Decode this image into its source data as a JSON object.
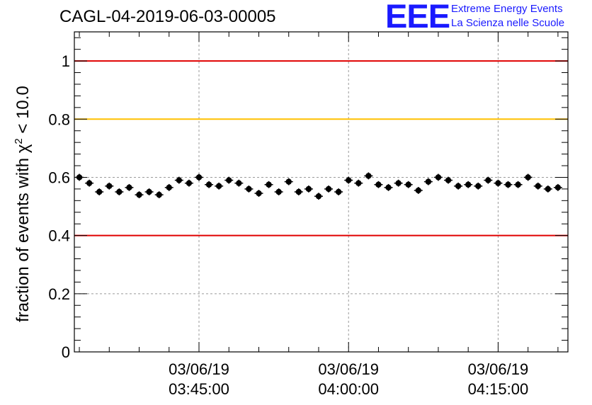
{
  "title": "CAGL-04-2019-06-03-00005",
  "logo": {
    "mark": "EEE",
    "line1": "Extreme Energy Events",
    "line2": "La Scienza nelle Scuole"
  },
  "colors": {
    "upper_limit": "#e00000",
    "lower_limit": "#e00000",
    "reference": "#ffc000",
    "markers": "#000000",
    "grid": "#9a9a9a",
    "logo": "#1a1aff"
  },
  "chart_data": {
    "type": "scatter",
    "title": "CAGL-04-2019-06-03-00005",
    "ylabel_pre": "fraction of events with ",
    "ylabel_symbol": "χ",
    "ylabel_exp": "2",
    "ylabel_post": " < 10.0",
    "xlabel": "",
    "ylim": [
      0,
      1.1
    ],
    "yticks": [
      {
        "value": 0,
        "label": "0"
      },
      {
        "value": 0.2,
        "label": "0.2"
      },
      {
        "value": 0.4,
        "label": "0.4"
      },
      {
        "value": 0.6,
        "label": "0.6"
      },
      {
        "value": 0.8,
        "label": "0.8"
      },
      {
        "value": 1,
        "label": "1"
      }
    ],
    "xlim": [
      "03:32:30",
      "04:22:00"
    ],
    "xticks": [
      {
        "time": "03:45:00",
        "date": "03/06/19",
        "label": "03:45:00"
      },
      {
        "time": "04:00:00",
        "date": "03/06/19",
        "label": "04:00:00"
      },
      {
        "time": "04:15:00",
        "date": "03/06/19",
        "label": "04:15:00"
      }
    ],
    "grid": true,
    "reference_lines": [
      {
        "y": 1.0,
        "color": "#e00000"
      },
      {
        "y": 0.8,
        "color": "#ffc000"
      },
      {
        "y": 0.4,
        "color": "#e00000"
      }
    ],
    "x": [
      "03:33:00",
      "03:34:00",
      "03:35:00",
      "03:36:00",
      "03:37:00",
      "03:38:00",
      "03:39:00",
      "03:40:00",
      "03:41:00",
      "03:42:00",
      "03:43:00",
      "03:44:00",
      "03:45:00",
      "03:46:00",
      "03:47:00",
      "03:48:00",
      "03:49:00",
      "03:50:00",
      "03:51:00",
      "03:52:00",
      "03:53:00",
      "03:54:00",
      "03:55:00",
      "03:56:00",
      "03:57:00",
      "03:58:00",
      "03:59:00",
      "04:00:00",
      "04:01:00",
      "04:02:00",
      "04:03:00",
      "04:04:00",
      "04:05:00",
      "04:06:00",
      "04:07:00",
      "04:08:00",
      "04:09:00",
      "04:10:00",
      "04:11:00",
      "04:12:00",
      "04:13:00",
      "04:14:00",
      "04:15:00",
      "04:16:00",
      "04:17:00",
      "04:18:00",
      "04:19:00",
      "04:20:00",
      "04:21:00"
    ],
    "values": [
      0.6,
      0.58,
      0.55,
      0.57,
      0.55,
      0.565,
      0.54,
      0.55,
      0.54,
      0.565,
      0.59,
      0.58,
      0.6,
      0.575,
      0.57,
      0.59,
      0.58,
      0.56,
      0.545,
      0.575,
      0.55,
      0.585,
      0.55,
      0.56,
      0.535,
      0.56,
      0.55,
      0.59,
      0.58,
      0.605,
      0.575,
      0.565,
      0.58,
      0.575,
      0.555,
      0.585,
      0.6,
      0.59,
      0.57,
      0.575,
      0.57,
      0.59,
      0.58,
      0.575,
      0.575,
      0.6,
      0.57,
      0.56,
      0.565
    ],
    "error": 0.012
  }
}
